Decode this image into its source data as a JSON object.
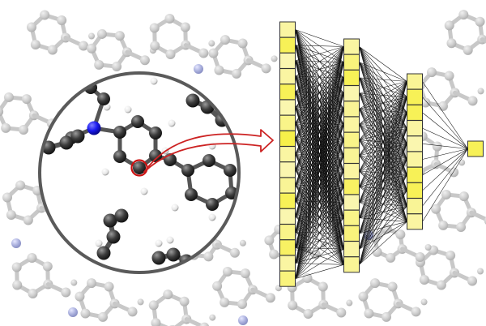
{
  "figure": {
    "background_color": "#ffffff",
    "magnifier": {
      "ring_color": "#5a5a5a",
      "arrow_color": "#cc2222",
      "highlighted_atom_ring_color": "#cc1111"
    },
    "molecule": {
      "carbon_color": "#3c3c3c",
      "nitrogen_color": "#1a1aee",
      "hydrogen_color": "#f2f2f2",
      "bond_color": "#555555",
      "background_molecule_color": "#c8c8c8",
      "background_nitrogen_color": "#aab0dd"
    },
    "network": {
      "layer_sizes": [
        17,
        15,
        10,
        1
      ],
      "edge_color": "#111111",
      "node_border_color": "#333333",
      "node_fill_light": "#fbf7c8",
      "node_fill_bright": "#f7f04a",
      "layers": [
        {
          "name": "input-layer",
          "activations": [
            0.3,
            0.9,
            0.2,
            0.3,
            0.9,
            0.2,
            0.5,
            1.0,
            0.3,
            0.2,
            0.4,
            0.9,
            0.2,
            0.5,
            0.8,
            0.3,
            0.6
          ]
        },
        {
          "name": "hidden-layer-1",
          "activations": [
            0.3,
            0.6,
            0.9,
            0.2,
            0.4,
            0.3,
            0.5,
            0.4,
            0.3,
            0.8,
            0.2,
            0.5,
            0.6,
            0.3,
            0.4
          ]
        },
        {
          "name": "hidden-layer-2",
          "activations": [
            0.4,
            0.9,
            0.9,
            0.3,
            0.2,
            0.3,
            0.9,
            0.9,
            0.4,
            0.3
          ]
        },
        {
          "name": "output-layer",
          "activations": [
            0.9
          ]
        }
      ]
    }
  }
}
